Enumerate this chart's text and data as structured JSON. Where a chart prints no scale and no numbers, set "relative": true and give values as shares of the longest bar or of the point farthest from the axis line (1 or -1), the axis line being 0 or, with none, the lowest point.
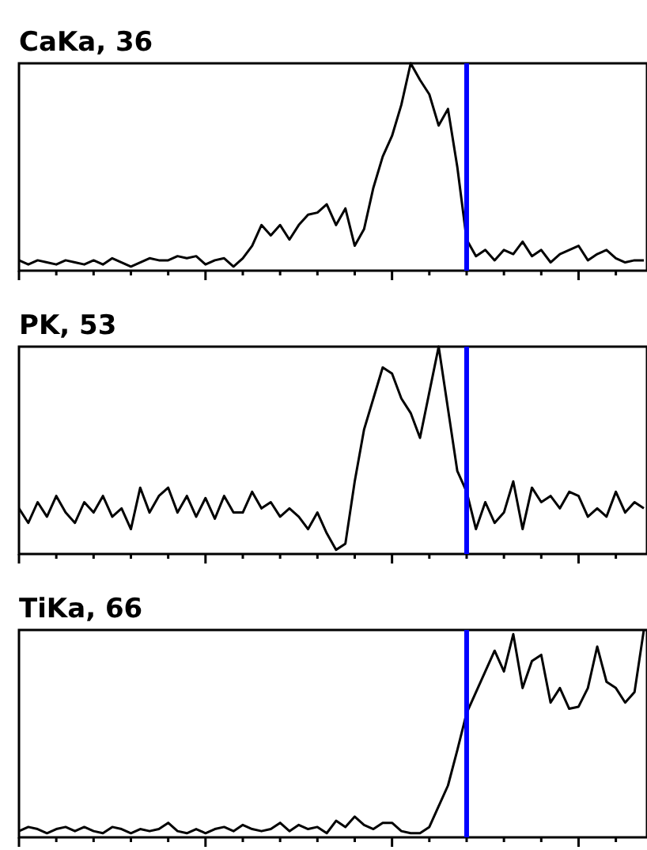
{
  "chart_data": [
    {
      "type": "line",
      "title": "CaKa, 36",
      "relative": true,
      "categories": [
        null,
        null,
        null,
        null,
        null,
        null,
        null,
        null,
        null,
        null,
        null,
        null,
        null,
        null,
        null,
        null,
        null,
        null,
        null,
        null,
        null,
        null,
        null,
        null,
        null,
        null,
        null,
        null,
        null,
        null,
        null,
        null,
        null,
        null,
        null,
        null,
        null,
        null,
        null,
        null,
        null,
        null,
        null,
        null,
        null,
        null,
        null,
        null,
        null,
        null,
        null,
        null,
        null,
        null,
        null,
        null,
        null,
        null,
        null,
        null,
        null,
        null,
        null,
        null,
        null,
        null,
        null,
        null
      ],
      "series": [
        {
          "color": "#000000",
          "values": [
            0.05,
            0.03,
            0.05,
            0.04,
            0.03,
            0.05,
            0.04,
            0.03,
            0.05,
            0.03,
            0.06,
            0.04,
            0.02,
            0.04,
            0.06,
            0.05,
            0.05,
            0.07,
            0.06,
            0.07,
            0.03,
            0.05,
            0.06,
            0.02,
            0.06,
            0.12,
            0.22,
            0.17,
            0.22,
            0.15,
            0.22,
            0.27,
            0.28,
            0.32,
            0.22,
            0.3,
            0.12,
            0.2,
            0.4,
            0.55,
            0.65,
            0.8,
            1,
            0.92,
            0.85,
            0.7,
            0.78,
            0.5,
            0.15,
            0.07,
            0.1,
            0.05,
            0.1,
            0.08,
            0.14,
            0.07,
            0.1,
            0.04,
            0.08,
            0.1,
            0.12,
            0.05,
            0.08,
            0.1,
            0.06,
            0.04,
            0.05,
            0.05
          ]
        }
      ]
    },
    {
      "type": "line",
      "title": "PK, 53",
      "relative": true,
      "categories": [
        null,
        null,
        null,
        null,
        null,
        null,
        null,
        null,
        null,
        null,
        null,
        null,
        null,
        null,
        null,
        null,
        null,
        null,
        null,
        null,
        null,
        null,
        null,
        null,
        null,
        null,
        null,
        null,
        null,
        null,
        null,
        null,
        null,
        null,
        null,
        null,
        null,
        null,
        null,
        null,
        null,
        null,
        null,
        null,
        null,
        null,
        null,
        null,
        null,
        null,
        null,
        null,
        null,
        null,
        null,
        null,
        null,
        null,
        null,
        null,
        null,
        null,
        null,
        null,
        null,
        null,
        null,
        null
      ],
      "series": [
        {
          "color": "#000000",
          "values": [
            0.22,
            0.15,
            0.25,
            0.18,
            0.28,
            0.2,
            0.15,
            0.25,
            0.2,
            0.28,
            0.18,
            0.22,
            0.12,
            0.32,
            0.2,
            0.28,
            0.32,
            0.2,
            0.28,
            0.18,
            0.27,
            0.17,
            0.28,
            0.2,
            0.2,
            0.3,
            0.22,
            0.25,
            0.18,
            0.22,
            0.18,
            0.12,
            0.2,
            0.1,
            0.02,
            0.05,
            0.35,
            0.6,
            0.75,
            0.9,
            0.87,
            0.75,
            0.68,
            0.56,
            0.78,
            1,
            0.7,
            0.4,
            0.3,
            0.12,
            0.25,
            0.15,
            0.2,
            0.35,
            0.12,
            0.32,
            0.25,
            0.28,
            0.22,
            0.3,
            0.28,
            0.18,
            0.22,
            0.18,
            0.3,
            0.2,
            0.25,
            0.22
          ]
        }
      ]
    },
    {
      "type": "line",
      "title": "TiKa, 66",
      "relative": true,
      "categories": [
        null,
        null,
        null,
        null,
        null,
        null,
        null,
        null,
        null,
        null,
        null,
        null,
        null,
        null,
        null,
        null,
        null,
        null,
        null,
        null,
        null,
        null,
        null,
        null,
        null,
        null,
        null,
        null,
        null,
        null,
        null,
        null,
        null,
        null,
        null,
        null,
        null,
        null,
        null,
        null,
        null,
        null,
        null,
        null,
        null,
        null,
        null,
        null,
        null,
        null,
        null,
        null,
        null,
        null,
        null,
        null,
        null,
        null,
        null,
        null,
        null,
        null,
        null,
        null,
        null,
        null,
        null,
        null
      ],
      "series": [
        {
          "color": "#000000",
          "values": [
            0.03,
            0.05,
            0.04,
            0.02,
            0.04,
            0.05,
            0.03,
            0.05,
            0.03,
            0.02,
            0.05,
            0.04,
            0.02,
            0.04,
            0.03,
            0.04,
            0.07,
            0.03,
            0.02,
            0.04,
            0.02,
            0.04,
            0.05,
            0.03,
            0.06,
            0.04,
            0.03,
            0.04,
            0.07,
            0.03,
            0.06,
            0.04,
            0.05,
            0.02,
            0.08,
            0.05,
            0.1,
            0.06,
            0.04,
            0.07,
            0.07,
            0.03,
            0.02,
            0.02,
            0.05,
            0.15,
            0.25,
            0.42,
            0.6,
            0.7,
            0.8,
            0.9,
            0.8,
            0.98,
            0.72,
            0.85,
            0.88,
            0.65,
            0.72,
            0.62,
            0.63,
            0.72,
            0.92,
            0.75,
            0.72,
            0.65,
            0.7,
            1
          ]
        }
      ]
    }
  ]
}
